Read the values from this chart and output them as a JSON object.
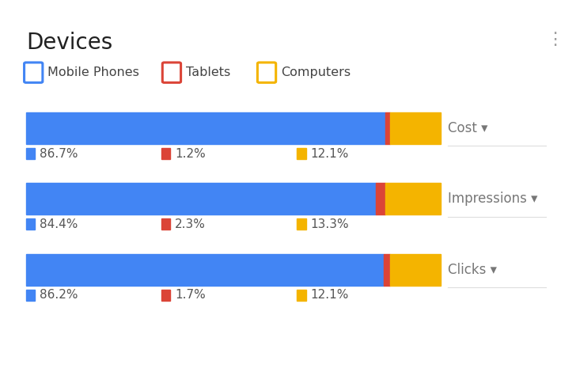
{
  "title": "Devices",
  "background_color": "#ffffff",
  "categories": [
    "Cost",
    "Impressions",
    "Clicks"
  ],
  "mobile_color": "#4285f4",
  "tablet_color": "#db4437",
  "computer_color": "#f4b400",
  "mobile_values": [
    86.7,
    84.4,
    86.2
  ],
  "tablet_values": [
    1.2,
    2.3,
    1.7
  ],
  "computer_values": [
    12.1,
    13.3,
    12.1
  ],
  "mobile_label": "Mobile Phones",
  "tablet_label": "Tablets",
  "computer_label": "Computers",
  "label_color": "#777777",
  "pct_color": "#555555",
  "title_fontsize": 20,
  "legend_fontsize": 11.5,
  "pct_fontsize": 11,
  "category_fontsize": 12
}
